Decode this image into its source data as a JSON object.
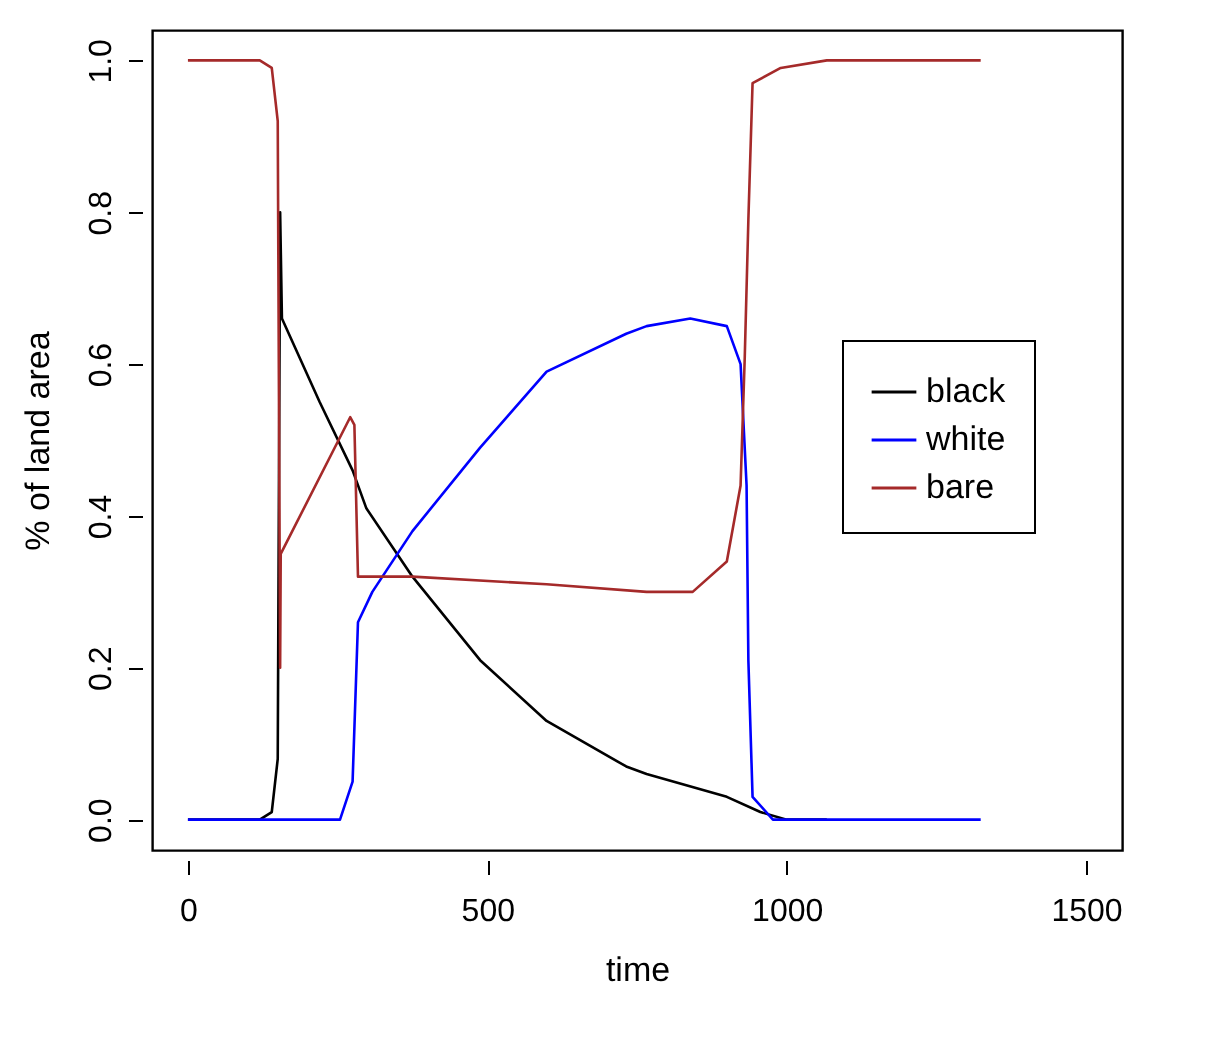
{
  "chart_data": {
    "type": "line",
    "xlabel": "time",
    "ylabel": "% of land area",
    "xlim": [
      -60,
      1560
    ],
    "xticks": [
      0,
      500,
      1000,
      1500
    ],
    "ylim": [
      -0.04,
      1.04
    ],
    "yticks": [
      {
        "value": 0,
        "label": "0.0"
      },
      {
        "value": 0.2,
        "label": "0.2"
      },
      {
        "value": 0.4,
        "label": "0.4"
      },
      {
        "value": 0.6,
        "label": "0.6"
      },
      {
        "value": 0.8,
        "label": "0.8"
      },
      {
        "value": 1,
        "label": "1.0"
      }
    ],
    "grid": false,
    "legend": "right",
    "line_style": "solid",
    "marker": "none",
    "series": [
      {
        "name": "black",
        "color": "#000000",
        "x": [
          0,
          110,
          120,
          140,
          150,
          154,
          157,
          220,
          275,
          298,
          375,
          488,
          599,
          732,
          766,
          900,
          956,
          1000,
          1067
        ],
        "values": [
          0,
          0,
          0,
          0.01,
          0.08,
          0.8,
          0.66,
          0.55,
          0.46,
          0.41,
          0.32,
          0.21,
          0.13,
          0.07,
          0.06,
          0.03,
          0.01,
          0,
          0
        ]
      },
      {
        "name": "white",
        "color": "#0000ff",
        "x": [
          0,
          254,
          275,
          284,
          308,
          375,
          488,
          599,
          732,
          766,
          839,
          900,
          923,
          933,
          936,
          943,
          977,
          1324
        ],
        "values": [
          0,
          0,
          0.05,
          0.26,
          0.3,
          0.38,
          0.49,
          0.59,
          0.64,
          0.65,
          0.66,
          0.65,
          0.6,
          0.44,
          0.21,
          0.03,
          0,
          0
        ]
      },
      {
        "name": "bare",
        "color": "#a52a2a",
        "x": [
          0,
          120,
          140,
          150,
          154,
          155,
          271,
          278,
          284,
          375,
          599,
          766,
          843,
          900,
          923,
          930,
          936,
          943,
          990,
          1067,
          1324
        ],
        "values": [
          1,
          1,
          0.99,
          0.92,
          0.2,
          0.35,
          0.53,
          0.52,
          0.32,
          0.32,
          0.31,
          0.3,
          0.3,
          0.34,
          0.44,
          0.61,
          0.79,
          0.97,
          0.99,
          1,
          1
        ]
      }
    ]
  }
}
